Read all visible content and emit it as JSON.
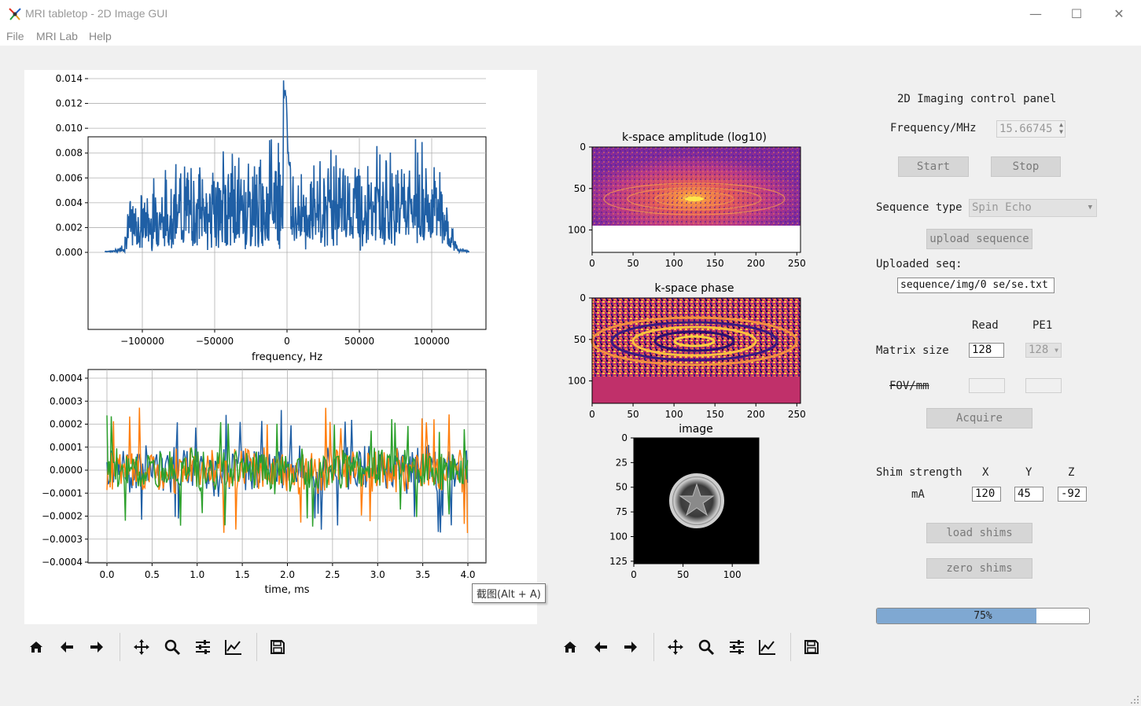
{
  "window": {
    "title": "MRI tabletop - 2D Image GUI",
    "minimize": "—",
    "maximize": "☐",
    "close": "✕"
  },
  "menu": [
    "File",
    "MRI Lab",
    "Help"
  ],
  "plots": {
    "spectrum": {
      "xlabel": "frequency, Hz",
      "xticks": [
        "−100000",
        "−50000",
        "0",
        "50000",
        "100000"
      ],
      "yticks": [
        "0.000",
        "0.002",
        "0.004",
        "0.006",
        "0.008",
        "0.010",
        "0.012",
        "0.014"
      ]
    },
    "signal": {
      "xlabel": "time, ms",
      "xticks": [
        "0.0",
        "0.5",
        "1.0",
        "1.5",
        "2.0",
        "2.5",
        "3.0",
        "3.5",
        "4.0"
      ],
      "yticks": [
        "0.0004",
        "0.0003",
        "0.0002",
        "0.0001",
        "0.0000",
        "−0.0001",
        "−0.0002",
        "−0.0003",
        "−0.0004"
      ]
    },
    "kspace_amp": {
      "title": "k-space amplitude (log10)",
      "xticks": [
        "0",
        "50",
        "100",
        "150",
        "200",
        "250"
      ],
      "yticks": [
        "0",
        "50",
        "100"
      ]
    },
    "kspace_phase": {
      "title": "k-space phase",
      "xticks": [
        "0",
        "50",
        "100",
        "150",
        "200",
        "250"
      ],
      "yticks": [
        "0",
        "50",
        "100"
      ]
    },
    "image": {
      "title": "image",
      "xticks": [
        "0",
        "50",
        "100"
      ],
      "yticks": [
        "0",
        "25",
        "50",
        "75",
        "100",
        "125"
      ]
    }
  },
  "chart_data": [
    {
      "type": "line",
      "xlabel": "frequency, Hz",
      "ylabel": "",
      "xlim": [
        -140000,
        140000
      ],
      "ylim": [
        -0.0005,
        0.0148
      ],
      "series": [
        {
          "color": "#1f5fa5",
          "x": [
            -125000,
            -118000,
            -112000,
            -110000,
            -100000,
            -80000,
            -60000,
            -40000,
            -20000,
            -5000,
            -3000,
            -1000,
            1000,
            10000,
            30000,
            50000,
            70000,
            90000,
            105000,
            110000,
            112000,
            118000,
            125000
          ],
          "y": [
            0.0001,
            0.0002,
            0.001,
            0.0045,
            0.005,
            0.0075,
            0.0085,
            0.0088,
            0.0082,
            0.0117,
            0.0143,
            0.0142,
            0.0078,
            0.0073,
            0.0085,
            0.0085,
            0.0092,
            0.0093,
            0.0095,
            0.0045,
            0.0025,
            0.0005,
            0.0001
          ]
        }
      ]
    },
    {
      "type": "line",
      "xlabel": "time, ms",
      "ylabel": "",
      "xlim": [
        -0.1,
        4.1
      ],
      "ylim": [
        -0.0004,
        0.0004
      ],
      "series": [
        {
          "color": "#1f5fa5",
          "x": [
            0.0,
            0.6,
            1.2,
            2.0,
            2.6,
            3.2,
            3.6,
            4.0
          ],
          "y": [
            0.0002,
            0.0004,
            0.0003,
            0.0004,
            0.00033,
            0.0003,
            0.0003,
            0.0002
          ]
        },
        {
          "color": "#ff7f0e",
          "x": [
            0.0,
            0.1,
            0.7,
            1.5,
            2.3,
            3.1,
            3.8,
            4.0
          ],
          "y": [
            0.0003,
            0.0003,
            -0.00037,
            0.0003,
            0.00031,
            -0.0003,
            0.00035,
            0.0
          ]
        },
        {
          "color": "#2ca02c",
          "x": [
            0.0,
            0.5,
            1.1,
            1.8,
            2.4,
            3.0,
            3.5,
            4.0
          ],
          "y": [
            0.0001,
            -0.00022,
            0.00025,
            -0.00027,
            0.00029,
            -0.00025,
            0.00022,
            0.0001
          ]
        }
      ]
    }
  ],
  "control": {
    "title": "2D Imaging control panel",
    "frequency_label": "Frequency/MHz",
    "frequency_value": "15.66745",
    "start": "Start",
    "stop": "Stop",
    "sequence_type_label": "Sequence type",
    "sequence_type_value": "Spin Echo",
    "upload_sequence": "upload sequence",
    "uploaded_seq_label": "Uploaded seq:",
    "uploaded_seq_value": "sequence/img/0 se/se.txt",
    "read_label": "Read",
    "pe1_label": "PE1",
    "matrix_size_label": "Matrix size",
    "matrix_read": "128",
    "matrix_pe1": "128",
    "fov_label": "FOV/mm",
    "acquire": "Acquire",
    "shim_label": "Shim strength",
    "shim_x_label": "X",
    "shim_y_label": "Y",
    "shim_z_label": "Z",
    "ma_label": "mA",
    "shim_x": "120",
    "shim_y": "45",
    "shim_z": "-92",
    "load_shims": "load shims",
    "zero_shims": "zero shims",
    "progress_text": "75%",
    "progress": 0.75
  },
  "tooltip": "截图(Alt + A)",
  "colors": {
    "blue": "#1f5fa5",
    "orange": "#ff7f0e",
    "green": "#2ca02c",
    "progress": "#7fa8d2"
  }
}
